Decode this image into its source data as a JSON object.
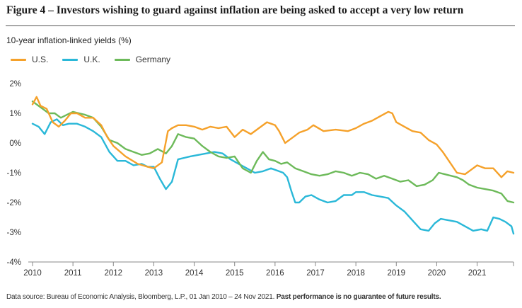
{
  "figure": {
    "title": "Figure 4 – Investors wishing to guard against inflation are being asked to accept a very low return",
    "source_text": "Data source: Bureau of Economic Analysis, Bloomberg, L.P., 01 Jan 2010 – 24 Nov 2021.",
    "disclaimer": "Past performance is no guarantee of future results."
  },
  "chart_data": {
    "type": "line",
    "title": "",
    "ylabel": "10-year inflation-linked yields (%)",
    "xlabel": "",
    "ylim": [
      -4,
      2
    ],
    "xlim": [
      2010,
      2021.9
    ],
    "yticks": [
      2,
      1,
      0,
      -1,
      -2,
      -3,
      -4
    ],
    "ytick_labels": [
      "2%",
      "1%",
      "0%",
      "-1%",
      "-2%",
      "-3%",
      "-4%"
    ],
    "xticks": [
      2010,
      2011,
      2012,
      2013,
      2014,
      2015,
      2016,
      2017,
      2018,
      2019,
      2020,
      2021
    ],
    "xtick_labels": [
      "2010",
      "2011",
      "2012",
      "2013",
      "2014",
      "2015",
      "2016",
      "2017",
      "2018",
      "2019",
      "2020",
      "2021"
    ],
    "grid": false,
    "legend_position": "top-left",
    "series": [
      {
        "name": "U.S.",
        "color": "#f5a12a",
        "x": [
          2010.0,
          2010.1,
          2010.2,
          2010.35,
          2010.5,
          2010.65,
          2010.8,
          2010.95,
          2011.1,
          2011.3,
          2011.5,
          2011.7,
          2011.85,
          2012.0,
          2012.3,
          2012.6,
          2012.85,
          2013.0,
          2013.2,
          2013.35,
          2013.45,
          2013.6,
          2013.8,
          2014.0,
          2014.2,
          2014.4,
          2014.6,
          2014.8,
          2015.0,
          2015.2,
          2015.4,
          2015.6,
          2015.8,
          2016.0,
          2016.1,
          2016.25,
          2016.4,
          2016.6,
          2016.8,
          2016.95,
          2017.2,
          2017.5,
          2017.8,
          2018.0,
          2018.2,
          2018.4,
          2018.6,
          2018.8,
          2018.9,
          2019.0,
          2019.2,
          2019.4,
          2019.6,
          2019.8,
          2020.0,
          2020.15,
          2020.3,
          2020.5,
          2020.7,
          2020.85,
          2021.0,
          2021.2,
          2021.4,
          2021.6,
          2021.75,
          2021.9
        ],
        "values": [
          1.3,
          1.55,
          1.25,
          1.15,
          0.7,
          0.55,
          0.75,
          1.0,
          1.0,
          0.85,
          0.85,
          0.6,
          0.2,
          -0.1,
          -0.45,
          -0.7,
          -0.8,
          -0.85,
          -0.65,
          0.4,
          0.5,
          0.6,
          0.6,
          0.55,
          0.45,
          0.55,
          0.5,
          0.55,
          0.2,
          0.45,
          0.3,
          0.5,
          0.7,
          0.6,
          0.4,
          0.0,
          0.15,
          0.35,
          0.45,
          0.6,
          0.4,
          0.45,
          0.4,
          0.5,
          0.65,
          0.75,
          0.9,
          1.05,
          1.0,
          0.7,
          0.55,
          0.4,
          0.35,
          0.1,
          -0.05,
          -0.3,
          -0.6,
          -1.0,
          -1.05,
          -0.9,
          -0.75,
          -0.85,
          -0.85,
          -1.15,
          -0.95,
          -1.0
        ]
      },
      {
        "name": "U.K.",
        "color": "#2ab8d8",
        "x": [
          2010.0,
          2010.15,
          2010.3,
          2010.45,
          2010.6,
          2010.75,
          2010.9,
          2011.1,
          2011.3,
          2011.5,
          2011.7,
          2011.9,
          2012.1,
          2012.3,
          2012.5,
          2012.7,
          2012.85,
          2013.0,
          2013.15,
          2013.3,
          2013.45,
          2013.6,
          2013.75,
          2013.9,
          2014.1,
          2014.3,
          2014.5,
          2014.7,
          2014.9,
          2015.1,
          2015.3,
          2015.5,
          2015.7,
          2015.9,
          2016.1,
          2016.2,
          2016.3,
          2016.4,
          2016.5,
          2016.6,
          2016.75,
          2016.9,
          2017.1,
          2017.3,
          2017.5,
          2017.7,
          2017.9,
          2018.0,
          2018.2,
          2018.4,
          2018.6,
          2018.8,
          2019.0,
          2019.2,
          2019.4,
          2019.6,
          2019.8,
          2019.95,
          2020.1,
          2020.3,
          2020.5,
          2020.7,
          2020.9,
          2021.1,
          2021.25,
          2021.4,
          2021.55,
          2021.7,
          2021.85,
          2021.9
        ],
        "values": [
          0.65,
          0.55,
          0.3,
          0.7,
          0.8,
          0.6,
          0.65,
          0.65,
          0.55,
          0.4,
          0.2,
          -0.3,
          -0.6,
          -0.6,
          -0.75,
          -0.7,
          -0.8,
          -0.8,
          -1.2,
          -1.55,
          -1.3,
          -0.55,
          -0.5,
          -0.45,
          -0.4,
          -0.35,
          -0.3,
          -0.35,
          -0.55,
          -0.7,
          -0.85,
          -1.0,
          -0.95,
          -0.85,
          -0.95,
          -1.0,
          -1.15,
          -1.6,
          -2.0,
          -2.0,
          -1.8,
          -1.75,
          -1.9,
          -2.0,
          -1.95,
          -1.75,
          -1.75,
          -1.65,
          -1.65,
          -1.75,
          -1.8,
          -1.85,
          -2.1,
          -2.3,
          -2.6,
          -2.9,
          -2.95,
          -2.7,
          -2.55,
          -2.6,
          -2.65,
          -2.8,
          -2.95,
          -2.9,
          -2.95,
          -2.5,
          -2.55,
          -2.65,
          -2.8,
          -3.05
        ]
      },
      {
        "name": "Germany",
        "color": "#6dba5a",
        "x": [
          2010.0,
          2010.1,
          2010.25,
          2010.4,
          2010.55,
          2010.7,
          2010.85,
          2011.0,
          2011.15,
          2011.3,
          2011.5,
          2011.7,
          2011.9,
          2012.1,
          2012.3,
          2012.5,
          2012.7,
          2012.9,
          2013.1,
          2013.3,
          2013.45,
          2013.6,
          2013.8,
          2014.0,
          2014.2,
          2014.4,
          2014.6,
          2014.8,
          2015.0,
          2015.2,
          2015.4,
          2015.55,
          2015.7,
          2015.85,
          2016.0,
          2016.15,
          2016.3,
          2016.5,
          2016.7,
          2016.9,
          2017.1,
          2017.3,
          2017.5,
          2017.7,
          2017.9,
          2018.1,
          2018.3,
          2018.5,
          2018.7,
          2018.9,
          2019.1,
          2019.3,
          2019.5,
          2019.7,
          2019.9,
          2020.05,
          2020.2,
          2020.35,
          2020.5,
          2020.65,
          2020.8,
          2021.0,
          2021.2,
          2021.4,
          2021.6,
          2021.75,
          2021.9
        ],
        "values": [
          1.4,
          1.3,
          1.15,
          1.0,
          1.0,
          0.85,
          0.95,
          1.05,
          1.0,
          0.95,
          0.85,
          0.55,
          0.1,
          0.0,
          -0.2,
          -0.3,
          -0.4,
          -0.35,
          -0.2,
          -0.35,
          -0.1,
          0.3,
          0.2,
          0.15,
          -0.1,
          -0.3,
          -0.45,
          -0.5,
          -0.45,
          -0.85,
          -1.0,
          -0.6,
          -0.3,
          -0.55,
          -0.6,
          -0.7,
          -0.65,
          -0.85,
          -0.95,
          -1.05,
          -1.1,
          -1.05,
          -0.95,
          -1.0,
          -1.1,
          -1.0,
          -1.05,
          -1.2,
          -1.1,
          -1.2,
          -1.3,
          -1.25,
          -1.45,
          -1.4,
          -1.25,
          -1.0,
          -1.05,
          -1.1,
          -1.15,
          -1.25,
          -1.4,
          -1.5,
          -1.55,
          -1.6,
          -1.7,
          -1.95,
          -2.0
        ]
      }
    ]
  }
}
